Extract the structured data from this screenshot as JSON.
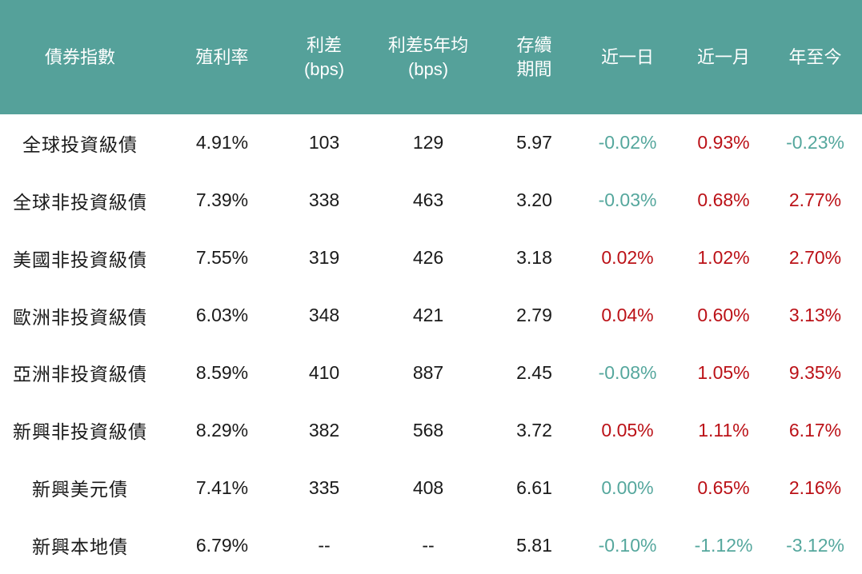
{
  "colors": {
    "header_bg": "#55a19a",
    "header_text": "#ffffff",
    "body_text": "#1a1a1a",
    "positive_change": "#bb1117",
    "negative_change": "#55a79d"
  },
  "header": {
    "col_index": {
      "line1": "債券指數"
    },
    "col_yield": {
      "line1": "殖利率"
    },
    "col_spread": {
      "line1": "利差",
      "line2": "(bps)"
    },
    "col_spread5y": {
      "line1": "利差5年均",
      "line2": "(bps)"
    },
    "col_duration": {
      "line1": "存續",
      "line2": "期間"
    },
    "col_1d": {
      "line1": "近一日"
    },
    "col_1m": {
      "line1": "近一月"
    },
    "col_ytd": {
      "line1": "年至今"
    }
  },
  "chart_data": {
    "type": "table",
    "columns": [
      "債券指數",
      "殖利率",
      "利差 (bps)",
      "利差5年均 (bps)",
      "存續期間",
      "近一日",
      "近一月",
      "年至今"
    ],
    "rows": [
      {
        "name": "全球投資級債",
        "yield": "4.91%",
        "spread": "103",
        "spread_5y": "129",
        "duration": "5.97",
        "change_1d": {
          "value": "-0.02%",
          "trend": "down"
        },
        "change_1m": {
          "value": "0.93%",
          "trend": "up"
        },
        "change_ytd": {
          "value": "-0.23%",
          "trend": "down"
        }
      },
      {
        "name": "全球非投資級債",
        "yield": "7.39%",
        "spread": "338",
        "spread_5y": "463",
        "duration": "3.20",
        "change_1d": {
          "value": "-0.03%",
          "trend": "down"
        },
        "change_1m": {
          "value": "0.68%",
          "trend": "up"
        },
        "change_ytd": {
          "value": "2.77%",
          "trend": "up"
        }
      },
      {
        "name": "美國非投資級債",
        "yield": "7.55%",
        "spread": "319",
        "spread_5y": "426",
        "duration": "3.18",
        "change_1d": {
          "value": "0.02%",
          "trend": "up"
        },
        "change_1m": {
          "value": "1.02%",
          "trend": "up"
        },
        "change_ytd": {
          "value": "2.70%",
          "trend": "up"
        }
      },
      {
        "name": "歐洲非投資級債",
        "yield": "6.03%",
        "spread": "348",
        "spread_5y": "421",
        "duration": "2.79",
        "change_1d": {
          "value": "0.04%",
          "trend": "up"
        },
        "change_1m": {
          "value": "0.60%",
          "trend": "up"
        },
        "change_ytd": {
          "value": "3.13%",
          "trend": "up"
        }
      },
      {
        "name": "亞洲非投資級債",
        "yield": "8.59%",
        "spread": "410",
        "spread_5y": "887",
        "duration": "2.45",
        "change_1d": {
          "value": "-0.08%",
          "trend": "down"
        },
        "change_1m": {
          "value": "1.05%",
          "trend": "up"
        },
        "change_ytd": {
          "value": "9.35%",
          "trend": "up"
        }
      },
      {
        "name": "新興非投資級債",
        "yield": "8.29%",
        "spread": "382",
        "spread_5y": "568",
        "duration": "3.72",
        "change_1d": {
          "value": "0.05%",
          "trend": "up"
        },
        "change_1m": {
          "value": "1.11%",
          "trend": "up"
        },
        "change_ytd": {
          "value": "6.17%",
          "trend": "up"
        }
      },
      {
        "name": "新興美元債",
        "yield": "7.41%",
        "spread": "335",
        "spread_5y": "408",
        "duration": "6.61",
        "change_1d": {
          "value": "0.00%",
          "trend": "down"
        },
        "change_1m": {
          "value": "0.65%",
          "trend": "up"
        },
        "change_ytd": {
          "value": "2.16%",
          "trend": "up"
        }
      },
      {
        "name": "新興本地債",
        "yield": "6.79%",
        "spread": "--",
        "spread_5y": "--",
        "duration": "5.81",
        "change_1d": {
          "value": "-0.10%",
          "trend": "down"
        },
        "change_1m": {
          "value": "-1.12%",
          "trend": "down"
        },
        "change_ytd": {
          "value": "-3.12%",
          "trend": "down"
        }
      }
    ]
  }
}
